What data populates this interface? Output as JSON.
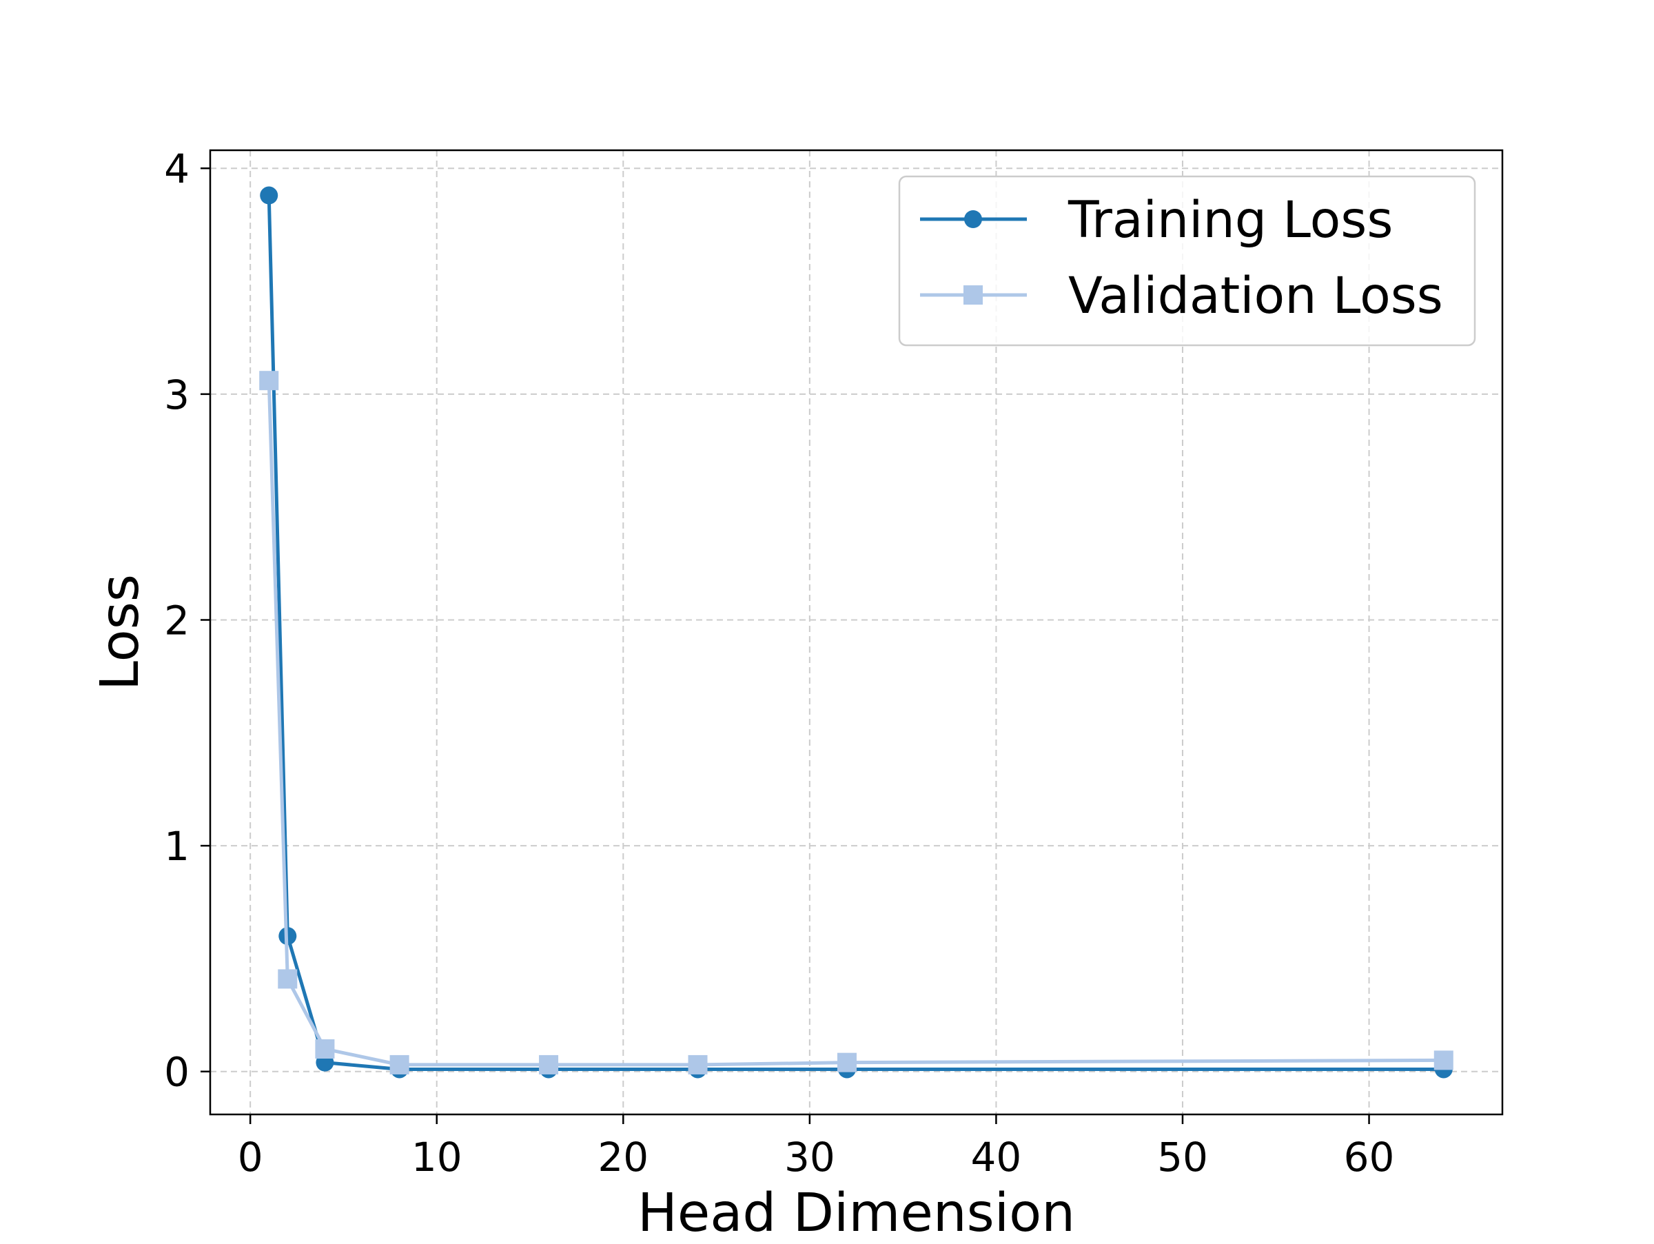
{
  "chart_data": {
    "type": "line",
    "title": "",
    "xlabel": "Head Dimension",
    "ylabel": "Loss",
    "xlim": [
      -2.15,
      67.15
    ],
    "ylim": [
      -0.19,
      4.08
    ],
    "xticks": [
      0,
      10,
      20,
      30,
      40,
      50,
      60
    ],
    "yticks": [
      0,
      1,
      2,
      3,
      4
    ],
    "xtick_labels": [
      "0",
      "10",
      "20",
      "30",
      "40",
      "50",
      "60"
    ],
    "ytick_labels": [
      "0",
      "1",
      "2",
      "3",
      "4"
    ],
    "grid": true,
    "grid_style": "dashed",
    "legend_position": "top-right",
    "x": [
      1,
      2,
      4,
      8,
      16,
      24,
      32,
      64
    ],
    "series": [
      {
        "name": "Training Loss",
        "values": [
          3.88,
          0.6,
          0.04,
          0.01,
          0.01,
          0.01,
          0.01,
          0.01
        ],
        "color": "#1f77b4",
        "marker": "circle"
      },
      {
        "name": "Validation Loss",
        "values": [
          3.06,
          0.41,
          0.1,
          0.03,
          0.03,
          0.03,
          0.04,
          0.05
        ],
        "color": "#aec7e8",
        "marker": "square"
      }
    ]
  }
}
